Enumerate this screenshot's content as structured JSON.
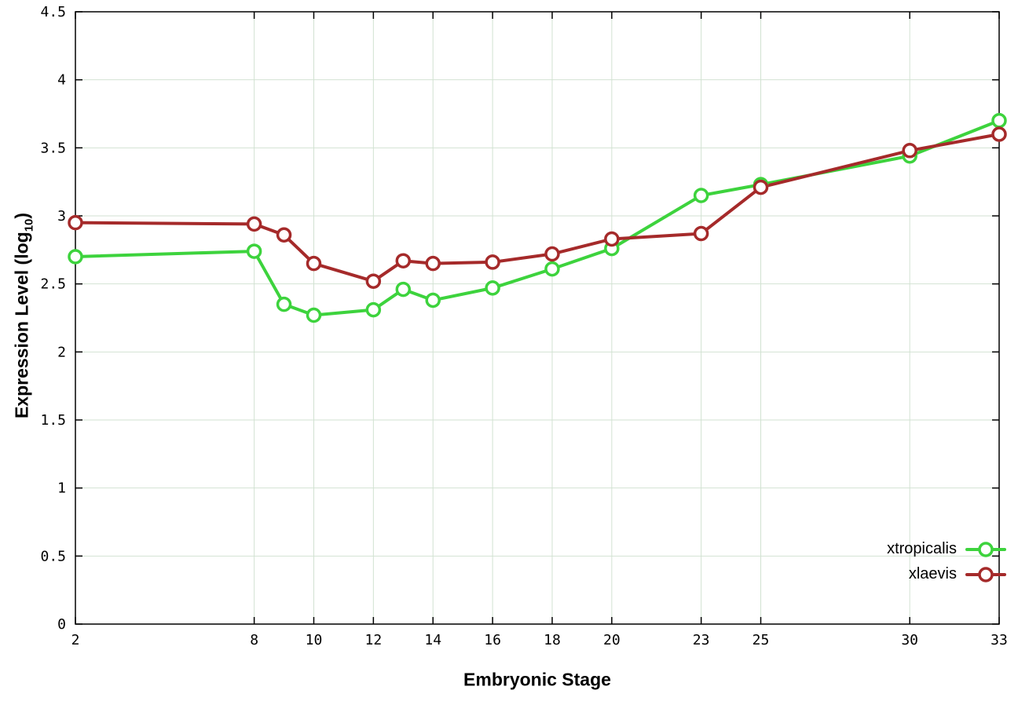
{
  "chart_data": {
    "type": "line",
    "x": [
      2,
      8,
      9,
      10,
      12,
      13,
      14,
      16,
      18,
      20,
      23,
      25,
      30,
      33
    ],
    "series": [
      {
        "name": "xtropicalis",
        "color": "#3dd33d",
        "values": [
          2.7,
          2.74,
          2.35,
          2.27,
          2.31,
          2.46,
          2.38,
          2.47,
          2.61,
          2.76,
          3.15,
          3.23,
          3.44,
          3.7
        ]
      },
      {
        "name": "xlaevis",
        "color": "#a52a2a",
        "values": [
          2.95,
          2.94,
          2.86,
          2.65,
          2.52,
          2.67,
          2.65,
          2.66,
          2.72,
          2.83,
          2.87,
          3.21,
          3.48,
          3.6
        ]
      }
    ],
    "title": "",
    "xlabel": "Embryonic Stage",
    "ylabel": "Expression Level (log10)",
    "ylabel_parts": {
      "prefix": "Expression Level (log",
      "sub": "10",
      "suffix": ")"
    },
    "xlim": [
      2,
      33
    ],
    "ylim": [
      0,
      4.5
    ],
    "xticks": [
      2,
      8,
      10,
      12,
      14,
      16,
      18,
      20,
      23,
      25,
      30,
      33
    ],
    "yticks": [
      0,
      0.5,
      1,
      1.5,
      2,
      2.5,
      3,
      3.5,
      4,
      4.5
    ],
    "grid": true,
    "grid_color": "#d2e2d2",
    "border_color": "#000000",
    "marker": "open-circle",
    "legend_position": "bottom-right-inside"
  }
}
